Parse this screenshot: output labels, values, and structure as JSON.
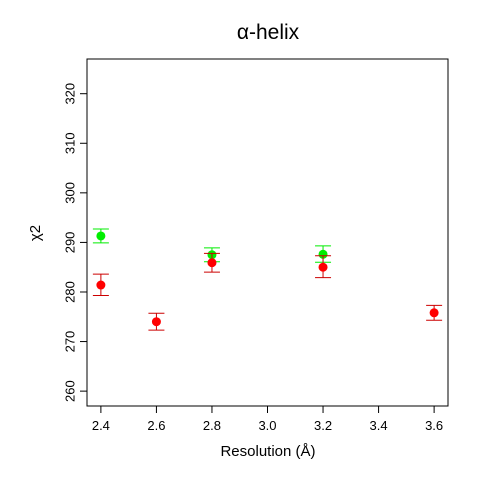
{
  "chart_data": {
    "type": "scatter",
    "title": "α-helix",
    "xlabel": "Resolution (Å)",
    "ylabel": "χ2",
    "xlim": [
      2.35,
      3.65
    ],
    "ylim": [
      257,
      327
    ],
    "x_ticks": [
      "2.4",
      "2.6",
      "2.8",
      "3.0",
      "3.2",
      "3.4",
      "3.6"
    ],
    "y_ticks": [
      "260",
      "270",
      "280",
      "290",
      "300",
      "310",
      "320"
    ],
    "grid": false,
    "series": [
      {
        "color": "#00ee00",
        "error_bar_color": "#00ee00",
        "points": [
          {
            "x": 2.4,
            "y": 291.3,
            "lo": 289.9,
            "hi": 292.7
          },
          {
            "x": 2.8,
            "y": 287.5,
            "lo": 286.1,
            "hi": 288.9
          },
          {
            "x": 3.2,
            "y": 287.6,
            "lo": 286.0,
            "hi": 289.3
          }
        ]
      },
      {
        "color": "#ff0000",
        "error_bar_color": "#cc0000",
        "points": [
          {
            "x": 2.4,
            "y": 281.4,
            "lo": 279.3,
            "hi": 283.6
          },
          {
            "x": 2.6,
            "y": 274.0,
            "lo": 272.3,
            "hi": 275.7
          },
          {
            "x": 2.8,
            "y": 285.9,
            "lo": 284.0,
            "hi": 287.8
          },
          {
            "x": 3.2,
            "y": 285.0,
            "lo": 282.9,
            "hi": 287.3
          },
          {
            "x": 3.6,
            "y": 275.8,
            "lo": 274.3,
            "hi": 277.3
          }
        ]
      }
    ]
  }
}
